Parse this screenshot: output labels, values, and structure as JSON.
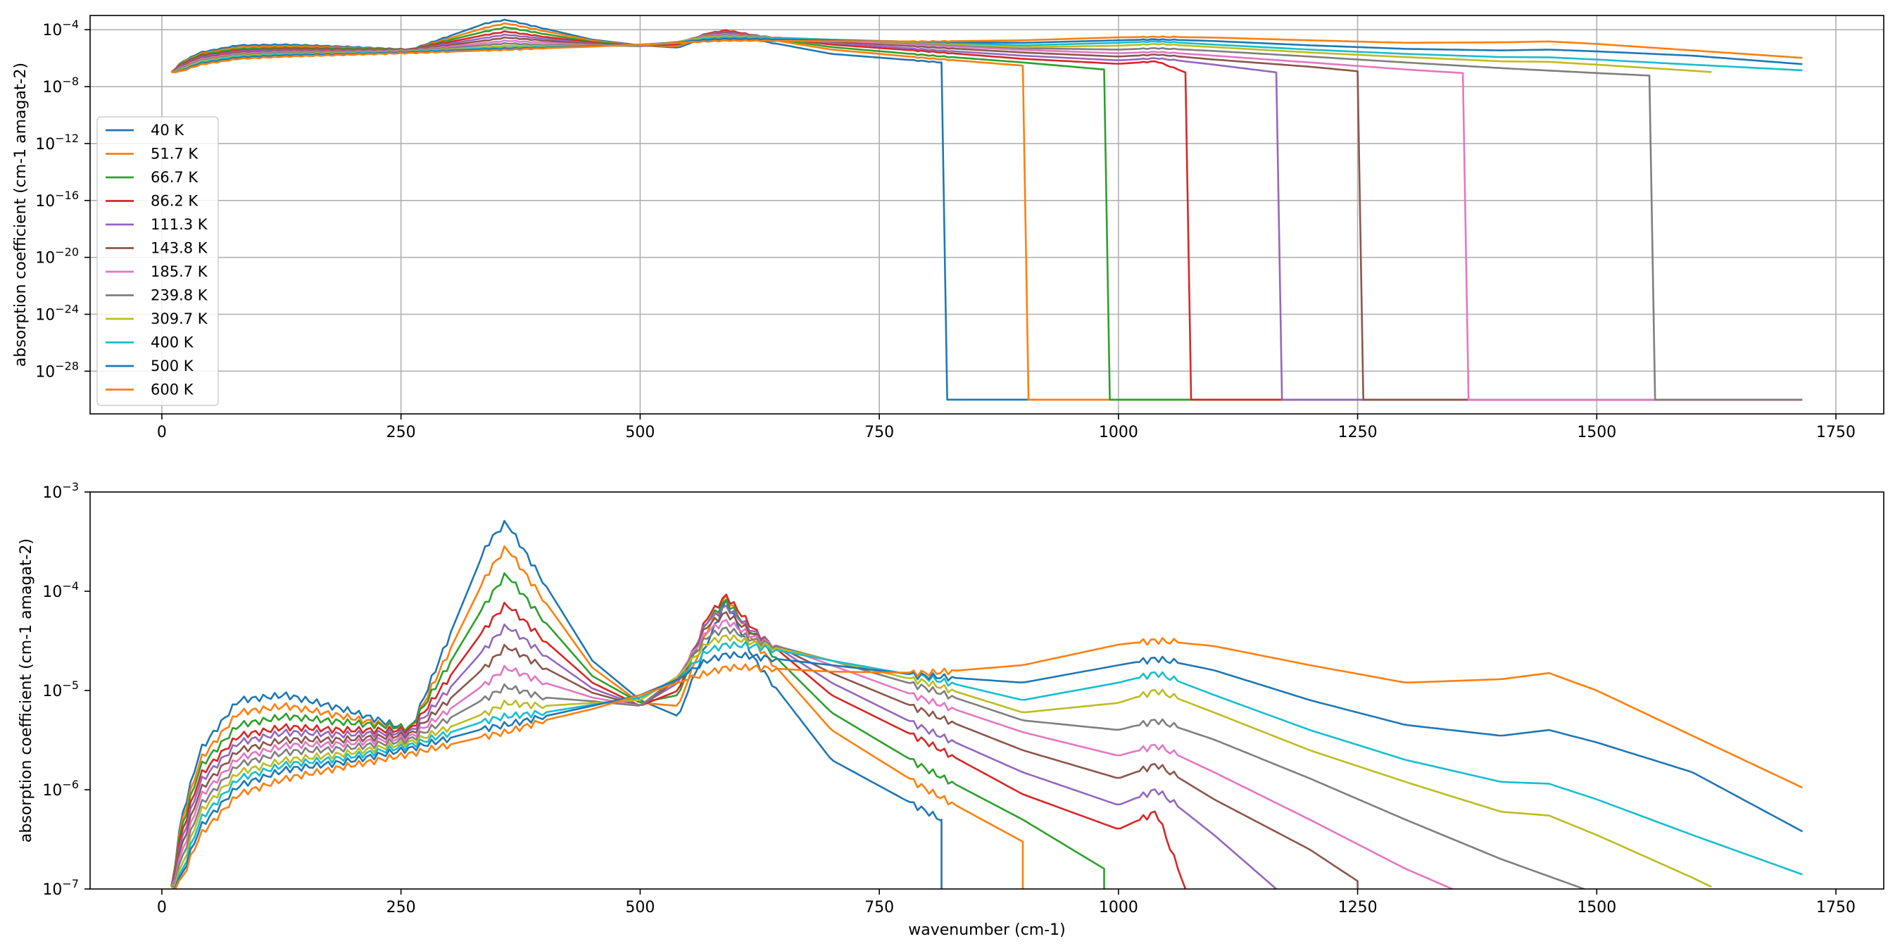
{
  "chart_data": [
    {
      "type": "line",
      "ylog": true,
      "xlim": [
        -75,
        1800
      ],
      "ylim": [
        1e-31,
        0.001
      ],
      "grid": true,
      "legend_placement": "lower-left",
      "xlabel": "",
      "ylabel": "absorption coefficient (cm-1 amagat-2)",
      "xticks": [
        0,
        250,
        500,
        750,
        1000,
        1250,
        1500,
        1750
      ],
      "xtick_labels": [
        "0",
        "250",
        "500",
        "750",
        "1000",
        "1250",
        "1500",
        "1750"
      ],
      "yticks": [
        {
          "base": "10",
          "exp": "−4"
        },
        {
          "base": "10",
          "exp": "−8"
        },
        {
          "base": "10",
          "exp": "−12"
        },
        {
          "base": "10",
          "exp": "−16"
        },
        {
          "base": "10",
          "exp": "−20"
        },
        {
          "base": "10",
          "exp": "−24"
        },
        {
          "base": "10",
          "exp": "−28"
        }
      ],
      "ytick_values": [
        0.0001,
        1e-08,
        1e-12,
        1e-16,
        1e-20,
        1e-24,
        1e-28
      ],
      "floor_value": 1e-30,
      "series": [
        {
          "name": "40 K",
          "color": "#1f77b4",
          "cutoff": 815,
          "x": [
            10,
            20,
            40,
            80,
            130,
            190,
            260,
            340,
            360,
            400,
            450,
            500,
            540,
            570,
            590,
            620,
            700,
            815
          ],
          "y": [
            1e-07,
            5e-07,
            2.5e-06,
            8e-06,
            9e-06,
            6.5e-06,
            4e-06,
            0.0003,
            0.0005,
            0.00012,
            2e-05,
            8e-06,
            5.5e-06,
            3e-05,
            8e-05,
            2e-05,
            2e-06,
            5e-07
          ]
        },
        {
          "name": "51.7 K",
          "color": "#ff7f0e",
          "cutoff": 900,
          "x": [
            10,
            20,
            40,
            80,
            130,
            190,
            260,
            340,
            360,
            400,
            450,
            500,
            540,
            570,
            590,
            620,
            700,
            800,
            900
          ],
          "y": [
            1e-07,
            4.5e-07,
            2e-06,
            6e-06,
            7e-06,
            5.5e-06,
            4e-06,
            0.00015,
            0.00028,
            8e-05,
            1.7e-05,
            7.5e-06,
            7e-06,
            4e-05,
            9e-05,
            3e-05,
            4e-06,
            1e-06,
            3e-07
          ]
        },
        {
          "name": "66.7 K",
          "color": "#2ca02c",
          "cutoff": 985,
          "x": [
            10,
            20,
            40,
            80,
            130,
            190,
            260,
            340,
            360,
            400,
            450,
            500,
            540,
            570,
            590,
            620,
            700,
            800,
            900,
            985
          ],
          "y": [
            1e-07,
            4e-07,
            1.7e-06,
            4.5e-06,
            5.5e-06,
            4.8e-06,
            4.2e-06,
            8e-05,
            0.00015,
            5e-05,
            1.4e-05,
            7.5e-06,
            9e-06,
            5e-05,
            8e-05,
            3.5e-05,
            6e-06,
            1.6e-06,
            5e-07,
            1.6e-07
          ]
        },
        {
          "name": "86.2 K",
          "color": "#d62728",
          "cutoff": 1070,
          "x": [
            10,
            20,
            40,
            80,
            130,
            190,
            260,
            340,
            360,
            400,
            450,
            500,
            540,
            570,
            590,
            620,
            700,
            800,
            900,
            1000,
            1040,
            1070
          ],
          "y": [
            1e-07,
            3.5e-07,
            1.4e-06,
            3.5e-06,
            4.3e-06,
            4e-06,
            4e-06,
            4.5e-05,
            7.5e-05,
            3.2e-05,
            1.2e-05,
            7e-06,
            1e-05,
            5.5e-05,
            9e-05,
            4e-05,
            9e-06,
            3e-06,
            9e-07,
            4e-07,
            6e-07,
            1e-07
          ]
        },
        {
          "name": "111.3 K",
          "color": "#9467bd",
          "cutoff": 1165,
          "x": [
            10,
            20,
            40,
            80,
            130,
            190,
            260,
            340,
            360,
            400,
            450,
            500,
            540,
            570,
            590,
            620,
            700,
            800,
            900,
            1000,
            1040,
            1100,
            1165
          ],
          "y": [
            1e-07,
            3e-07,
            1.2e-06,
            3e-06,
            3.8e-06,
            3.6e-06,
            3.8e-06,
            2.8e-05,
            4.5e-05,
            2.3e-05,
            1.05e-05,
            7e-06,
            1.2e-05,
            5e-05,
            7e-05,
            3.8e-05,
            1.2e-05,
            4e-06,
            1.5e-06,
            7e-07,
            1e-06,
            3.5e-07,
            1e-07
          ]
        },
        {
          "name": "143.8 K",
          "color": "#8c564b",
          "cutoff": 1250,
          "x": [
            10,
            20,
            40,
            80,
            130,
            190,
            260,
            340,
            360,
            400,
            450,
            500,
            540,
            570,
            590,
            620,
            700,
            800,
            900,
            1000,
            1040,
            1100,
            1200,
            1250
          ],
          "y": [
            1e-07,
            2.6e-07,
            1e-06,
            2.5e-06,
            3.2e-06,
            3.2e-06,
            3.6e-06,
            1.8e-05,
            2.8e-05,
            1.7e-05,
            9.5e-06,
            7e-06,
            1.3e-05,
            4.5e-05,
            6e-05,
            3.6e-05,
            1.5e-05,
            6e-06,
            2.5e-06,
            1.3e-06,
            1.8e-06,
            8e-07,
            2.5e-07,
            1.2e-07
          ]
        },
        {
          "name": "185.7 K",
          "color": "#e377c2",
          "cutoff": 1360,
          "x": [
            10,
            20,
            40,
            80,
            130,
            190,
            260,
            340,
            360,
            400,
            450,
            500,
            540,
            570,
            590,
            620,
            700,
            800,
            900,
            1000,
            1040,
            1100,
            1200,
            1300,
            1360
          ],
          "y": [
            1e-07,
            2.2e-07,
            8.5e-07,
            2.1e-06,
            2.8e-06,
            2.9e-06,
            3.4e-06,
            1.2e-05,
            1.7e-05,
            1.2e-05,
            8.5e-06,
            7e-06,
            1.4e-05,
            4e-05,
            5e-05,
            3.4e-05,
            1.8e-05,
            8e-06,
            3.8e-06,
            2.2e-06,
            2.8e-06,
            1.5e-06,
            5e-07,
            1.6e-07,
            9e-08
          ]
        },
        {
          "name": "239.8 K",
          "color": "#7f7f7f",
          "cutoff": 1555,
          "x": [
            10,
            20,
            40,
            80,
            130,
            190,
            260,
            340,
            360,
            400,
            450,
            500,
            540,
            570,
            590,
            620,
            700,
            800,
            900,
            1000,
            1040,
            1100,
            1200,
            1300,
            1400,
            1500,
            1555
          ],
          "y": [
            1e-07,
            1.9e-07,
            7e-07,
            1.8e-06,
            2.4e-06,
            2.6e-06,
            3.2e-06,
            8.5e-06,
            1.1e-05,
            8.5e-06,
            7.8e-06,
            7e-06,
            1.4e-05,
            3.5e-05,
            4.2e-05,
            3.2e-05,
            2e-05,
            1.05e-05,
            5e-06,
            4e-06,
            5e-06,
            3.2e-06,
            1.3e-06,
            5e-07,
            2e-07,
            9e-08,
            6e-08
          ]
        },
        {
          "name": "309.7 K",
          "color": "#bcbd22",
          "cutoff": null,
          "x": [
            10,
            20,
            40,
            80,
            130,
            190,
            260,
            340,
            360,
            400,
            450,
            500,
            540,
            570,
            590,
            620,
            700,
            800,
            900,
            1000,
            1040,
            1100,
            1200,
            1300,
            1400,
            1450,
            1500,
            1600,
            1620
          ],
          "y": [
            1e-07,
            1.6e-07,
            6e-07,
            1.5e-06,
            2e-06,
            2.3e-06,
            3e-06,
            6e-06,
            7.5e-06,
            7e-06,
            7.5e-06,
            8e-06,
            1.4e-05,
            3e-05,
            3.5e-05,
            3e-05,
            2e-05,
            1.2e-05,
            6e-06,
            7.5e-06,
            1e-05,
            6e-06,
            2.5e-06,
            1.2e-06,
            6e-07,
            5.5e-07,
            3.5e-07,
            1.3e-07,
            1.05e-07
          ]
        },
        {
          "name": "400 K",
          "color": "#17becf",
          "cutoff": null,
          "x": [
            10,
            20,
            40,
            80,
            130,
            190,
            260,
            340,
            360,
            400,
            450,
            500,
            540,
            570,
            590,
            620,
            700,
            800,
            900,
            1000,
            1040,
            1100,
            1200,
            1300,
            1400,
            1450,
            1500,
            1600,
            1715
          ],
          "y": [
            1e-07,
            1.4e-07,
            5e-07,
            1.3e-06,
            1.8e-06,
            2.1e-06,
            2.8e-06,
            5e-06,
            5.5e-06,
            6e-06,
            7.2e-06,
            8.5e-06,
            1.3e-05,
            2.5e-05,
            2.9e-05,
            2.8e-05,
            2e-05,
            1.35e-05,
            8e-06,
            1.2e-05,
            1.5e-05,
            9e-06,
            4e-06,
            2e-06,
            1.2e-06,
            1.15e-06,
            8e-07,
            3.5e-07,
            1.4e-07
          ]
        },
        {
          "name": "500 K",
          "color": "#1f77b4",
          "cutoff": null,
          "x": [
            10,
            20,
            40,
            80,
            130,
            190,
            260,
            340,
            360,
            400,
            450,
            500,
            540,
            570,
            590,
            620,
            700,
            800,
            900,
            1000,
            1040,
            1100,
            1200,
            1300,
            1400,
            1450,
            1500,
            1600,
            1715
          ],
          "y": [
            1e-07,
            1.3e-07,
            4.2e-07,
            1.1e-06,
            1.6e-06,
            1.9e-06,
            2.6e-06,
            4.2e-06,
            4.5e-06,
            5.5e-06,
            7e-06,
            9e-06,
            1.3e-05,
            2e-05,
            2.3e-05,
            2.2e-05,
            1.8e-05,
            1.4e-05,
            1.2e-05,
            1.8e-05,
            2.1e-05,
            1.6e-05,
            8e-06,
            4.5e-06,
            3.5e-06,
            4e-06,
            3e-06,
            1.5e-06,
            3.8e-07
          ]
        },
        {
          "name": "600 K",
          "color": "#ff7f0e",
          "cutoff": null,
          "x": [
            10,
            20,
            40,
            80,
            130,
            190,
            260,
            340,
            360,
            400,
            450,
            500,
            540,
            570,
            590,
            620,
            700,
            800,
            900,
            1000,
            1040,
            1100,
            1200,
            1300,
            1400,
            1450,
            1500,
            1600,
            1715
          ],
          "y": [
            1e-07,
            1.2e-07,
            3.5e-07,
            9e-07,
            1.3e-06,
            1.7e-06,
            2.3e-06,
            3.5e-06,
            3.8e-06,
            5e-06,
            6.5e-06,
            9e-06,
            1.2e-05,
            1.5e-05,
            1.7e-05,
            1.7e-05,
            1.55e-05,
            1.5e-05,
            1.8e-05,
            2.9e-05,
            3.2e-05,
            2.8e-05,
            1.8e-05,
            1.2e-05,
            1.3e-05,
            1.5e-05,
            1e-05,
            3.5e-06,
            1.05e-06
          ]
        }
      ]
    },
    {
      "type": "line",
      "ylog": true,
      "xlim": [
        -75,
        1800
      ],
      "ylim": [
        1e-07,
        0.001
      ],
      "grid": false,
      "xlabel": "wavenumber (cm-1)",
      "ylabel": "absorption coefficient (cm-1 amagat-2)",
      "xticks": [
        0,
        250,
        500,
        750,
        1000,
        1250,
        1500,
        1750
      ],
      "xtick_labels": [
        "0",
        "250",
        "500",
        "750",
        "1000",
        "1250",
        "1500",
        "1750"
      ],
      "yticks": [
        {
          "base": "10",
          "exp": "−3"
        },
        {
          "base": "10",
          "exp": "−4"
        },
        {
          "base": "10",
          "exp": "−5"
        },
        {
          "base": "10",
          "exp": "−6"
        },
        {
          "base": "10",
          "exp": "−7"
        }
      ],
      "ytick_values": [
        0.001,
        0.0001,
        1e-05,
        1e-06,
        1e-07
      ],
      "series_same_as_top": true
    }
  ]
}
